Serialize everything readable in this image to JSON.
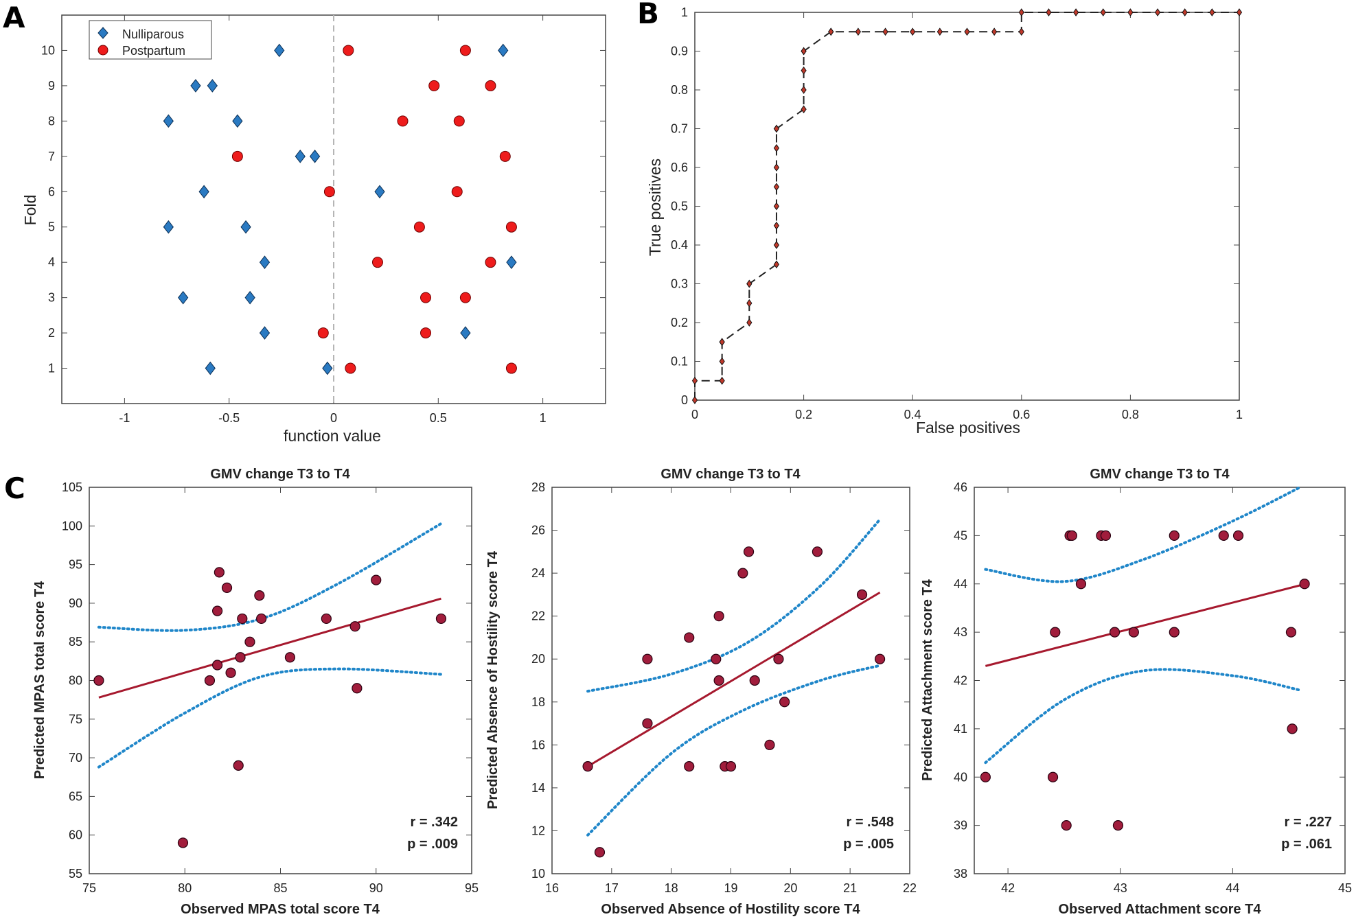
{
  "panel_letters": [
    "A",
    "B",
    "C"
  ],
  "colors": {
    "nulliparous": "#2a7ac2",
    "postpartum": "#ee1c1c",
    "roc_marker": "#c0392b",
    "scatter": "#a11d3c",
    "fit_line": "#a6192e",
    "ci_line": "#1f86c9"
  },
  "chart_data": [
    {
      "type": "scatter",
      "panel": "A",
      "xlabel": "function value",
      "ylabel": "Fold",
      "xlim": [
        -1.3,
        1.3
      ],
      "ylim": [
        0,
        11
      ],
      "xticks": [
        -1,
        -0.5,
        0,
        0.5,
        1
      ],
      "xtick_labels": [
        "-1",
        "-0.5",
        "0",
        "0.5",
        "1"
      ],
      "yticks": [
        1,
        2,
        3,
        4,
        5,
        6,
        7,
        8,
        9,
        10
      ],
      "ytick_labels": [
        "1",
        "2",
        "3",
        "4",
        "5",
        "6",
        "7",
        "8",
        "9",
        "10"
      ],
      "reference_x": 0,
      "legend": [
        "Nulliparous",
        "Postpartum"
      ],
      "legend_position": "top-left",
      "series": [
        {
          "name": "Nulliparous",
          "marker": "diamond",
          "points": [
            [
              -0.26,
              10
            ],
            [
              0.81,
              10
            ],
            [
              -0.66,
              9
            ],
            [
              -0.58,
              9
            ],
            [
              -0.79,
              8
            ],
            [
              -0.46,
              8
            ],
            [
              -0.16,
              7
            ],
            [
              -0.09,
              7
            ],
            [
              -0.62,
              6
            ],
            [
              0.22,
              6
            ],
            [
              -0.79,
              5
            ],
            [
              -0.42,
              5
            ],
            [
              -0.33,
              4
            ],
            [
              0.85,
              4
            ],
            [
              -0.72,
              3
            ],
            [
              -0.4,
              3
            ],
            [
              -0.33,
              2
            ],
            [
              0.63,
              2
            ],
            [
              -0.59,
              1
            ],
            [
              -0.03,
              1
            ]
          ]
        },
        {
          "name": "Postpartum",
          "marker": "circle",
          "points": [
            [
              0.07,
              10
            ],
            [
              0.63,
              10
            ],
            [
              0.48,
              9
            ],
            [
              0.75,
              9
            ],
            [
              0.33,
              8
            ],
            [
              0.6,
              8
            ],
            [
              -0.46,
              7
            ],
            [
              0.82,
              7
            ],
            [
              -0.02,
              6
            ],
            [
              0.59,
              6
            ],
            [
              0.41,
              5
            ],
            [
              0.85,
              5
            ],
            [
              0.21,
              4
            ],
            [
              0.75,
              4
            ],
            [
              0.44,
              3
            ],
            [
              0.63,
              3
            ],
            [
              -0.05,
              2
            ],
            [
              0.44,
              2
            ],
            [
              0.08,
              1
            ],
            [
              0.85,
              1
            ]
          ]
        }
      ]
    },
    {
      "type": "line",
      "panel": "B",
      "xlabel": "False positives",
      "ylabel": "True positives",
      "xlim": [
        0,
        1
      ],
      "ylim": [
        0,
        1
      ],
      "xticks": [
        0,
        0.2,
        0.4,
        0.6,
        0.8,
        1
      ],
      "xtick_labels": [
        "0",
        "0.2",
        "0.4",
        "0.6",
        "0.8",
        "1"
      ],
      "yticks": [
        0,
        0.1,
        0.2,
        0.3,
        0.4,
        0.5,
        0.6,
        0.7,
        0.8,
        0.9,
        1
      ],
      "ytick_labels": [
        "0",
        "0.1",
        "0.2",
        "0.3",
        "0.4",
        "0.5",
        "0.6",
        "0.7",
        "0.8",
        "0.9",
        "1"
      ],
      "x": [
        0,
        0,
        0.05,
        0.05,
        0.05,
        0.05,
        0.1,
        0.1,
        0.1,
        0.1,
        0.15,
        0.15,
        0.15,
        0.15,
        0.15,
        0.15,
        0.15,
        0.15,
        0.15,
        0.2,
        0.2,
        0.2,
        0.2,
        0.2,
        0.25,
        0.25,
        0.3,
        0.35,
        0.4,
        0.45,
        0.5,
        0.55,
        0.6,
        0.6,
        0.65,
        0.7,
        0.75,
        0.8,
        0.85,
        0.9,
        0.95,
        1
      ],
      "y": [
        0,
        0.05,
        0.05,
        0.1,
        0.15,
        0.15,
        0.2,
        0.25,
        0.3,
        0.3,
        0.35,
        0.4,
        0.45,
        0.5,
        0.55,
        0.6,
        0.65,
        0.7,
        0.7,
        0.75,
        0.8,
        0.85,
        0.9,
        0.9,
        0.95,
        0.95,
        0.95,
        0.95,
        0.95,
        0.95,
        0.95,
        0.95,
        0.95,
        1,
        1,
        1,
        1,
        1,
        1,
        1,
        1,
        1
      ]
    },
    {
      "type": "scatter",
      "panel": "C1",
      "title": "GMV change T3 to T4",
      "xlabel": "Observed MPAS total score T4",
      "ylabel": "Predicted MPAS total score T4",
      "xlim": [
        75,
        95
      ],
      "ylim": [
        55,
        105
      ],
      "xticks": [
        75,
        80,
        85,
        90,
        95
      ],
      "xtick_labels": [
        "75",
        "80",
        "85",
        "90",
        "95"
      ],
      "yticks": [
        55,
        60,
        65,
        70,
        75,
        80,
        85,
        90,
        95,
        100,
        105
      ],
      "ytick_labels": [
        "55",
        "60",
        "65",
        "70",
        "75",
        "80",
        "85",
        "90",
        "95",
        "100",
        "105"
      ],
      "points": [
        [
          75.5,
          80
        ],
        [
          79.9,
          59
        ],
        [
          81.3,
          80
        ],
        [
          81.7,
          82
        ],
        [
          81.7,
          89
        ],
        [
          81.8,
          94
        ],
        [
          82.2,
          92
        ],
        [
          82.4,
          81
        ],
        [
          82.8,
          69
        ],
        [
          82.9,
          83
        ],
        [
          83.0,
          88
        ],
        [
          83.4,
          85
        ],
        [
          83.9,
          91
        ],
        [
          84.0,
          88
        ],
        [
          85.5,
          83
        ],
        [
          87.4,
          88
        ],
        [
          88.9,
          87
        ],
        [
          89.0,
          79
        ],
        [
          90.0,
          93
        ],
        [
          93.4,
          88
        ]
      ],
      "fit": [
        [
          75.5,
          77.8
        ],
        [
          93.4,
          90.6
        ]
      ],
      "ci_upper": [
        [
          75.5,
          86.9
        ],
        [
          80,
          86.5
        ],
        [
          84,
          88.0
        ],
        [
          88,
          92.5
        ],
        [
          93.4,
          100.3
        ]
      ],
      "ci_lower": [
        [
          75.5,
          68.8
        ],
        [
          80,
          75.8
        ],
        [
          84,
          80.5
        ],
        [
          88,
          81.5
        ],
        [
          93.4,
          80.8
        ]
      ],
      "stats": [
        "r = .342",
        "p = .009"
      ]
    },
    {
      "type": "scatter",
      "panel": "C2",
      "title": "GMV change T3 to T4",
      "xlabel": "Observed Absence of Hostility score T4",
      "ylabel": "Predicted Absence of Hostility score T4",
      "xlim": [
        16,
        22
      ],
      "ylim": [
        10,
        28
      ],
      "xticks": [
        16,
        17,
        18,
        19,
        20,
        21,
        22
      ],
      "xtick_labels": [
        "16",
        "17",
        "18",
        "19",
        "20",
        "21",
        "22"
      ],
      "yticks": [
        10,
        12,
        14,
        16,
        18,
        20,
        22,
        24,
        26,
        28
      ],
      "ytick_labels": [
        "10",
        "12",
        "14",
        "16",
        "18",
        "20",
        "22",
        "24",
        "26",
        "28"
      ],
      "points": [
        [
          16.6,
          15
        ],
        [
          16.8,
          11
        ],
        [
          17.6,
          20
        ],
        [
          17.6,
          17
        ],
        [
          18.3,
          21
        ],
        [
          18.3,
          15
        ],
        [
          18.75,
          20
        ],
        [
          18.8,
          22
        ],
        [
          18.8,
          19
        ],
        [
          18.9,
          15
        ],
        [
          19.0,
          15
        ],
        [
          19.2,
          24
        ],
        [
          19.3,
          25
        ],
        [
          19.4,
          19
        ],
        [
          19.65,
          16
        ],
        [
          19.8,
          20
        ],
        [
          19.9,
          18
        ],
        [
          20.45,
          25
        ],
        [
          21.2,
          23
        ],
        [
          21.5,
          20
        ]
      ],
      "fit": [
        [
          16.6,
          15.0
        ],
        [
          21.5,
          23.1
        ]
      ],
      "ci_upper": [
        [
          16.6,
          18.5
        ],
        [
          18,
          19.3
        ],
        [
          19.3,
          20.8
        ],
        [
          20.5,
          23.4
        ],
        [
          21.5,
          26.5
        ]
      ],
      "ci_lower": [
        [
          16.6,
          11.8
        ],
        [
          18,
          15.6
        ],
        [
          19.2,
          17.6
        ],
        [
          20.5,
          19.0
        ],
        [
          21.5,
          19.7
        ]
      ],
      "stats": [
        "r = .548",
        "p = .005"
      ]
    },
    {
      "type": "scatter",
      "panel": "C3",
      "title": "GMV change T3 to T4",
      "xlabel": "Observed Attachment score T4",
      "ylabel": "Predicted Attachment score T4",
      "xlim": [
        41.7,
        45
      ],
      "ylim": [
        38,
        46
      ],
      "xticks": [
        42,
        43,
        44,
        45
      ],
      "xtick_labels": [
        "42",
        "43",
        "44",
        "45"
      ],
      "yticks": [
        38,
        39,
        40,
        41,
        42,
        43,
        44,
        45,
        46
      ],
      "ytick_labels": [
        "38",
        "39",
        "40",
        "41",
        "42",
        "43",
        "44",
        "45",
        "46"
      ],
      "points": [
        [
          41.8,
          40
        ],
        [
          42.4,
          40
        ],
        [
          42.42,
          43
        ],
        [
          42.52,
          39
        ],
        [
          42.55,
          45
        ],
        [
          42.57,
          45
        ],
        [
          42.65,
          44
        ],
        [
          42.83,
          45
        ],
        [
          42.87,
          45
        ],
        [
          42.95,
          43
        ],
        [
          42.98,
          39
        ],
        [
          43.12,
          43
        ],
        [
          43.48,
          45
        ],
        [
          43.48,
          43
        ],
        [
          43.92,
          45
        ],
        [
          44.05,
          45
        ],
        [
          44.52,
          43
        ],
        [
          44.53,
          41
        ],
        [
          44.64,
          44
        ]
      ],
      "fit": [
        [
          41.8,
          42.3
        ],
        [
          44.65,
          44.0
        ]
      ],
      "ci_upper": [
        [
          41.8,
          44.3
        ],
        [
          42.5,
          44.05
        ],
        [
          43.2,
          44.5
        ],
        [
          44.0,
          45.3
        ],
        [
          44.6,
          46.0
        ]
      ],
      "ci_lower": [
        [
          41.8,
          40.3
        ],
        [
          42.5,
          41.6
        ],
        [
          43.2,
          42.2
        ],
        [
          44.0,
          42.1
        ],
        [
          44.6,
          41.8
        ]
      ],
      "stats": [
        "r = .227",
        "p = .061"
      ]
    }
  ]
}
